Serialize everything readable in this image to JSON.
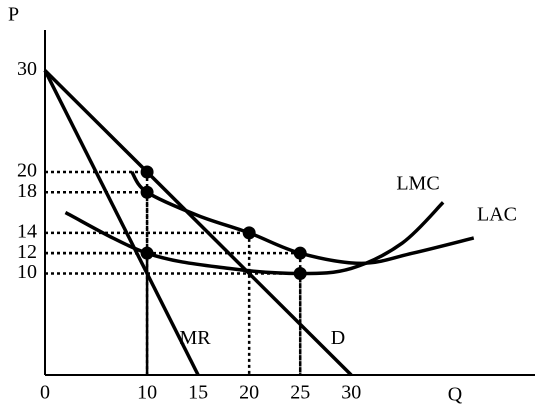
{
  "chart_data": {
    "type": "line",
    "xlabel": "Q",
    "ylabel": "P",
    "xlim": [
      0,
      48
    ],
    "ylim": [
      0,
      33
    ],
    "xticks": [
      0,
      10,
      15,
      20,
      25,
      30
    ],
    "yticks": [
      10,
      12,
      14,
      18,
      20,
      30
    ],
    "color": "#000000",
    "series": [
      {
        "name": "D",
        "x": [
          0,
          30
        ],
        "values": [
          30,
          0
        ]
      },
      {
        "name": "MR",
        "x": [
          0,
          15
        ],
        "values": [
          30,
          0
        ]
      },
      {
        "name": "LMC",
        "x": [
          2,
          10,
          18,
          25,
          30,
          35,
          39
        ],
        "values": [
          16,
          12,
          10.5,
          10,
          10.5,
          13,
          17
        ]
      },
      {
        "name": "LAC",
        "x": [
          8.5,
          10,
          15,
          20,
          25,
          31,
          36,
          42
        ],
        "values": [
          20,
          18,
          15.7,
          14,
          12,
          11,
          12,
          13.5
        ]
      }
    ],
    "points": {
      "x": [
        10,
        10,
        10,
        20,
        25,
        25
      ],
      "values": [
        20,
        18,
        12,
        14,
        12,
        10
      ]
    }
  }
}
